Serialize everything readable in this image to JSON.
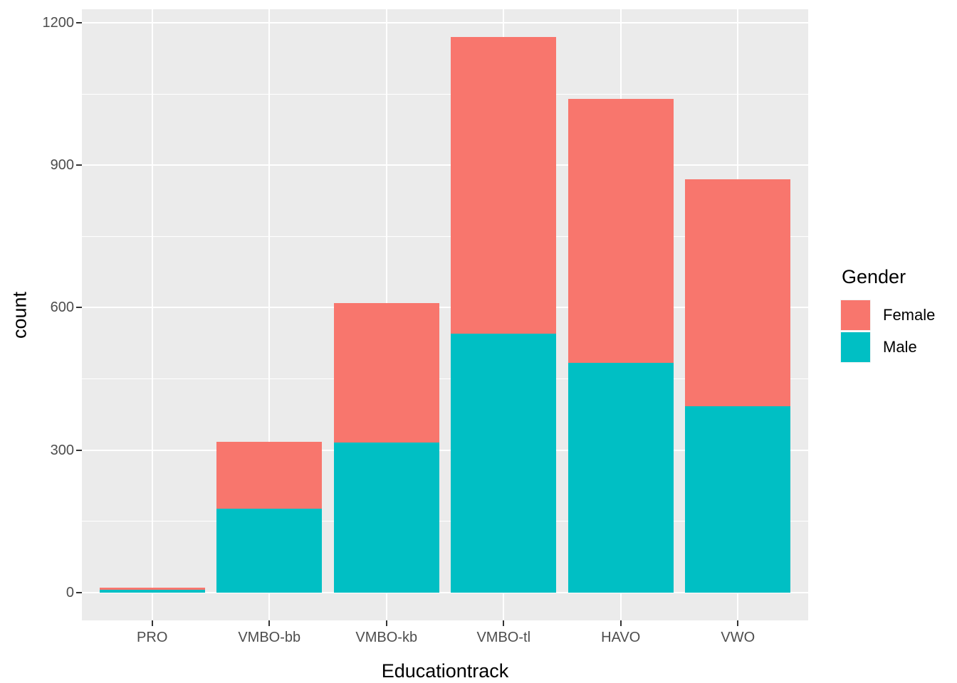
{
  "chart_data": {
    "type": "bar",
    "stacked": true,
    "title": "",
    "xlabel": "Educationtrack",
    "ylabel": "count",
    "categories": [
      "PRO",
      "VMBO-bb",
      "VMBO-kb",
      "VMBO-tl",
      "HAVO",
      "VWO"
    ],
    "series": [
      {
        "name": "Male",
        "color": "#00BFC4",
        "values": [
          6,
          176,
          316,
          545,
          484,
          392
        ]
      },
      {
        "name": "Female",
        "color": "#F8766D",
        "values": [
          5,
          141,
          293,
          625,
          556,
          478
        ]
      }
    ],
    "stack_order_bottom_to_top": [
      "Male",
      "Female"
    ],
    "totals": [
      11,
      317,
      609,
      1170,
      1040,
      870
    ],
    "y_ticks": [
      0,
      300,
      600,
      900,
      1200
    ],
    "y_minor_ticks": [
      150,
      450,
      750,
      1050
    ],
    "ylim": [
      0,
      1230
    ],
    "grid": true,
    "legend": {
      "title": "Gender",
      "position": "right",
      "entries": [
        {
          "label": "Female",
          "color": "#F8766D"
        },
        {
          "label": "Male",
          "color": "#00BFC4"
        }
      ]
    }
  },
  "style": {
    "panel_bg": "#EBEBEB",
    "grid_major_color": "#FFFFFF",
    "grid_minor_color": "#FFFFFF",
    "axis_text_color": "#4D4D4D",
    "title_color": "#000000",
    "tick_mark_color": "#333333"
  }
}
